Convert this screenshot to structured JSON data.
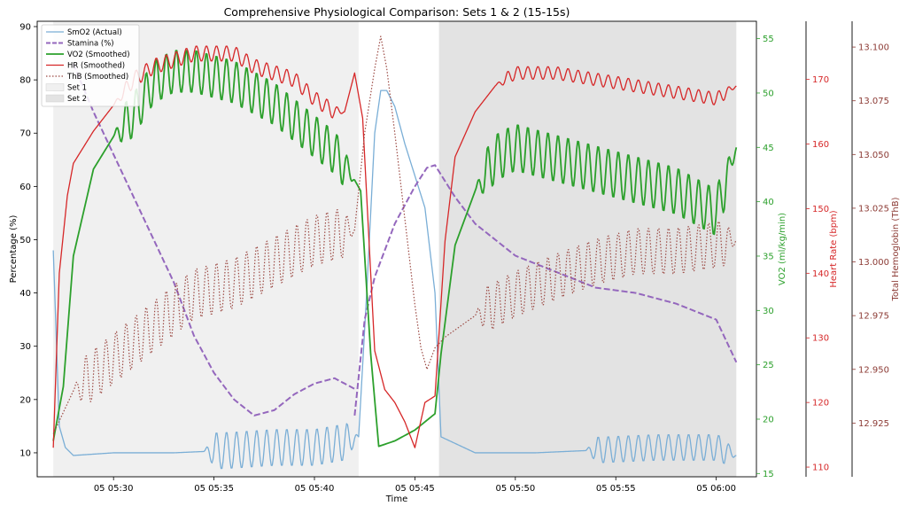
{
  "chart_data": {
    "type": "line",
    "title": "Comprehensive Physiological Comparison: Sets 1 & 2 (15-15s)",
    "xlabel": "Time",
    "x_ticks": [
      "05 05:30",
      "05 05:35",
      "05 05:40",
      "05 05:45",
      "05 05:50",
      "05 05:55",
      "05 06:00"
    ],
    "x_tick_minutes": [
      30,
      35,
      40,
      45,
      50,
      55,
      60
    ],
    "x_range_minutes": [
      26.2,
      62.0
    ],
    "axes": {
      "left": {
        "label": "Percentage (%)",
        "range": [
          5.5,
          91
        ],
        "ticks": [
          10,
          20,
          30,
          40,
          50,
          60,
          70,
          80,
          90
        ],
        "color": "#000000"
      },
      "vo2": {
        "label": "VO2 (ml/kg/min)",
        "range": [
          14.7,
          56.6
        ],
        "ticks": [
          15,
          20,
          25,
          30,
          35,
          40,
          45,
          50,
          55
        ],
        "color": "#2ca02c"
      },
      "hr": {
        "label": "Heart Rate (bpm)",
        "range": [
          108.5,
          179
        ],
        "ticks": [
          110,
          120,
          130,
          140,
          150,
          160,
          170
        ],
        "color": "#d62728"
      },
      "thb": {
        "label": "Total Hemoglobin (ThB)",
        "range": [
          12.9,
          13.112
        ],
        "ticks": [
          "12.925",
          "12.950",
          "12.975",
          "13.000",
          "13.025",
          "13.050",
          "13.075",
          "13.100"
        ],
        "tick_values": [
          12.925,
          12.95,
          12.975,
          13.0,
          13.025,
          13.05,
          13.075,
          13.1
        ],
        "color": "#8c3b35"
      }
    },
    "shaded_regions": [
      {
        "name": "Set 1",
        "x_start": 27.0,
        "x_end": 42.2,
        "color": "#f0f0f0"
      },
      {
        "name": "Set 2",
        "x_start": 46.2,
        "x_end": 61.0,
        "color": "#e3e3e3"
      }
    ],
    "legend": {
      "position": "top-left",
      "items": [
        "SmO2 (Actual)",
        "Stamina (%)",
        "VO2 (Smoothed)",
        "HR (Smoothed)",
        "ThB (Smoothed)",
        "Set 1",
        "Set 2"
      ]
    },
    "series": [
      {
        "name": "SmO2 (Actual)",
        "axis": "left",
        "color": "#7aaed6",
        "style": "solid",
        "width": 1.3,
        "x": [
          27.0,
          27.3,
          27.6,
          28.0,
          30.0,
          33.0,
          36.0,
          38.0,
          40.0,
          41.5,
          42.2,
          42.6,
          43.0,
          43.3,
          43.6,
          44.0,
          44.5,
          45.0,
          45.5,
          46.0,
          46.3,
          48.0,
          51.0,
          54.0,
          57.0,
          60.0,
          61.0
        ],
        "y": [
          48,
          15,
          11,
          9.5,
          10,
          10,
          10.5,
          11,
          11,
          12,
          13,
          40,
          70,
          78,
          78,
          75,
          68,
          62,
          56,
          40,
          13,
          10,
          10,
          10.5,
          11,
          11,
          9.5
        ],
        "osc": [
          {
            "x0": 34.5,
            "x1": 42.2,
            "amp": 3.5,
            "period": 0.5
          },
          {
            "x0": 53.5,
            "x1": 61.0,
            "amp": 2.5,
            "period": 0.5
          }
        ]
      },
      {
        "name": "Stamina (%)",
        "axis": "left",
        "color": "#9467bd",
        "style": "dashed",
        "width": 2,
        "x": [
          42.0,
          42.5,
          43.0,
          44.0,
          45.0,
          45.6,
          46.0,
          47.0,
          48.0,
          50.0,
          52.0,
          54.0,
          56.0,
          58.0,
          60.0,
          61.0
        ],
        "y": [
          17,
          35,
          43,
          53,
          60,
          63.5,
          64,
          58,
          53,
          47,
          44,
          41,
          40,
          38,
          35,
          27
        ]
      },
      {
        "name": "Stamina (%)",
        "axis": "left",
        "color": "#9467bd",
        "style": "dashed",
        "width": 2,
        "x": [
          28.0,
          29.0,
          30.0,
          31.0,
          32.0,
          33.0,
          34.0,
          35.0,
          36.0,
          37.0,
          38.0,
          39.0,
          40.0,
          41.0,
          42.0
        ],
        "y": [
          83,
          74,
          66,
          58,
          50,
          42,
          32,
          25,
          20,
          17,
          18,
          21,
          23,
          24,
          22
        ]
      },
      {
        "name": "VO2 (Smoothed)",
        "axis": "vo2",
        "color": "#2ca02c",
        "style": "solid",
        "width": 1.8,
        "x": [
          27.0,
          27.5,
          28.0,
          29.0,
          30.0,
          31.0,
          32.0,
          33.0,
          34.0,
          35.0,
          36.0,
          37.0,
          38.0,
          39.0,
          40.0,
          41.0,
          42.0,
          42.3,
          42.8,
          43.2,
          44.0,
          45.0,
          46.0,
          46.3,
          47.0,
          48.0,
          49.0,
          50.0,
          52.0,
          54.0,
          56.0,
          58.0,
          60.0,
          61.0
        ],
        "y": [
          18,
          23,
          35,
          43,
          46,
          48,
          51,
          52,
          52,
          51.5,
          51,
          50,
          49,
          47.5,
          46,
          44.5,
          42,
          41,
          26,
          17.5,
          18,
          19,
          20.5,
          26,
          36,
          41,
          44,
          45,
          44,
          43,
          42,
          41,
          39,
          45
        ],
        "osc": [
          {
            "x0": 30.0,
            "x1": 42.0,
            "amp": 2.0,
            "period": 0.5
          },
          {
            "x0": 48.0,
            "x1": 61.0,
            "amp": 2.2,
            "period": 0.5
          }
        ]
      },
      {
        "name": "HR (Smoothed)",
        "axis": "hr",
        "color": "#d62728",
        "style": "solid",
        "width": 1.3,
        "x": [
          27.0,
          27.3,
          27.7,
          28.0,
          29.0,
          30.0,
          31.0,
          32.0,
          33.0,
          34.0,
          35.0,
          36.0,
          37.0,
          38.0,
          39.0,
          40.0,
          41.0,
          41.5,
          42.0,
          42.4,
          43.0,
          43.5,
          44.0,
          44.5,
          45.0,
          45.5,
          46.0,
          46.5,
          47.0,
          48.0,
          49.0,
          50.0,
          52.0,
          54.0,
          56.0,
          58.0,
          60.0,
          61.0
        ],
        "y": [
          113,
          140,
          152,
          157,
          162,
          166,
          170,
          172,
          173,
          174,
          174,
          174,
          172,
          171,
          170,
          167,
          165,
          165,
          171,
          164,
          128,
          122,
          120,
          117,
          113,
          120,
          121,
          145,
          158,
          165,
          169,
          171,
          171,
          170,
          169,
          168,
          167,
          169
        ],
        "osc": [
          {
            "x0": 30.0,
            "x1": 41.5,
            "amp": 1.2,
            "period": 0.5
          },
          {
            "x0": 49.0,
            "x1": 61.0,
            "amp": 1.0,
            "period": 0.5
          }
        ]
      },
      {
        "name": "ThB (Smoothed)",
        "axis": "thb",
        "color": "#9c4a44",
        "style": "dotted",
        "width": 1.2,
        "x": [
          27.0,
          28.0,
          30.0,
          32.0,
          34.0,
          36.0,
          38.0,
          40.0,
          42.0,
          42.5,
          43.0,
          43.3,
          43.6,
          44.0,
          44.5,
          45.0,
          45.3,
          45.6,
          46.0,
          46.5,
          48.0,
          50.0,
          52.0,
          54.0,
          56.0,
          58.0,
          60.0,
          61.0
        ],
        "y": [
          12.92,
          12.94,
          12.955,
          12.97,
          12.985,
          12.99,
          13.0,
          13.01,
          13.015,
          13.06,
          13.09,
          13.105,
          13.09,
          13.06,
          13.02,
          12.98,
          12.96,
          12.95,
          12.96,
          12.965,
          12.975,
          12.985,
          12.993,
          13.0,
          13.005,
          13.005,
          13.008,
          13.01
        ],
        "osc": [
          {
            "x0": 28.0,
            "x1": 42.0,
            "amp": 0.012,
            "period": 0.5
          },
          {
            "x0": 48.0,
            "x1": 61.0,
            "amp": 0.011,
            "period": 0.5
          }
        ]
      }
    ]
  }
}
